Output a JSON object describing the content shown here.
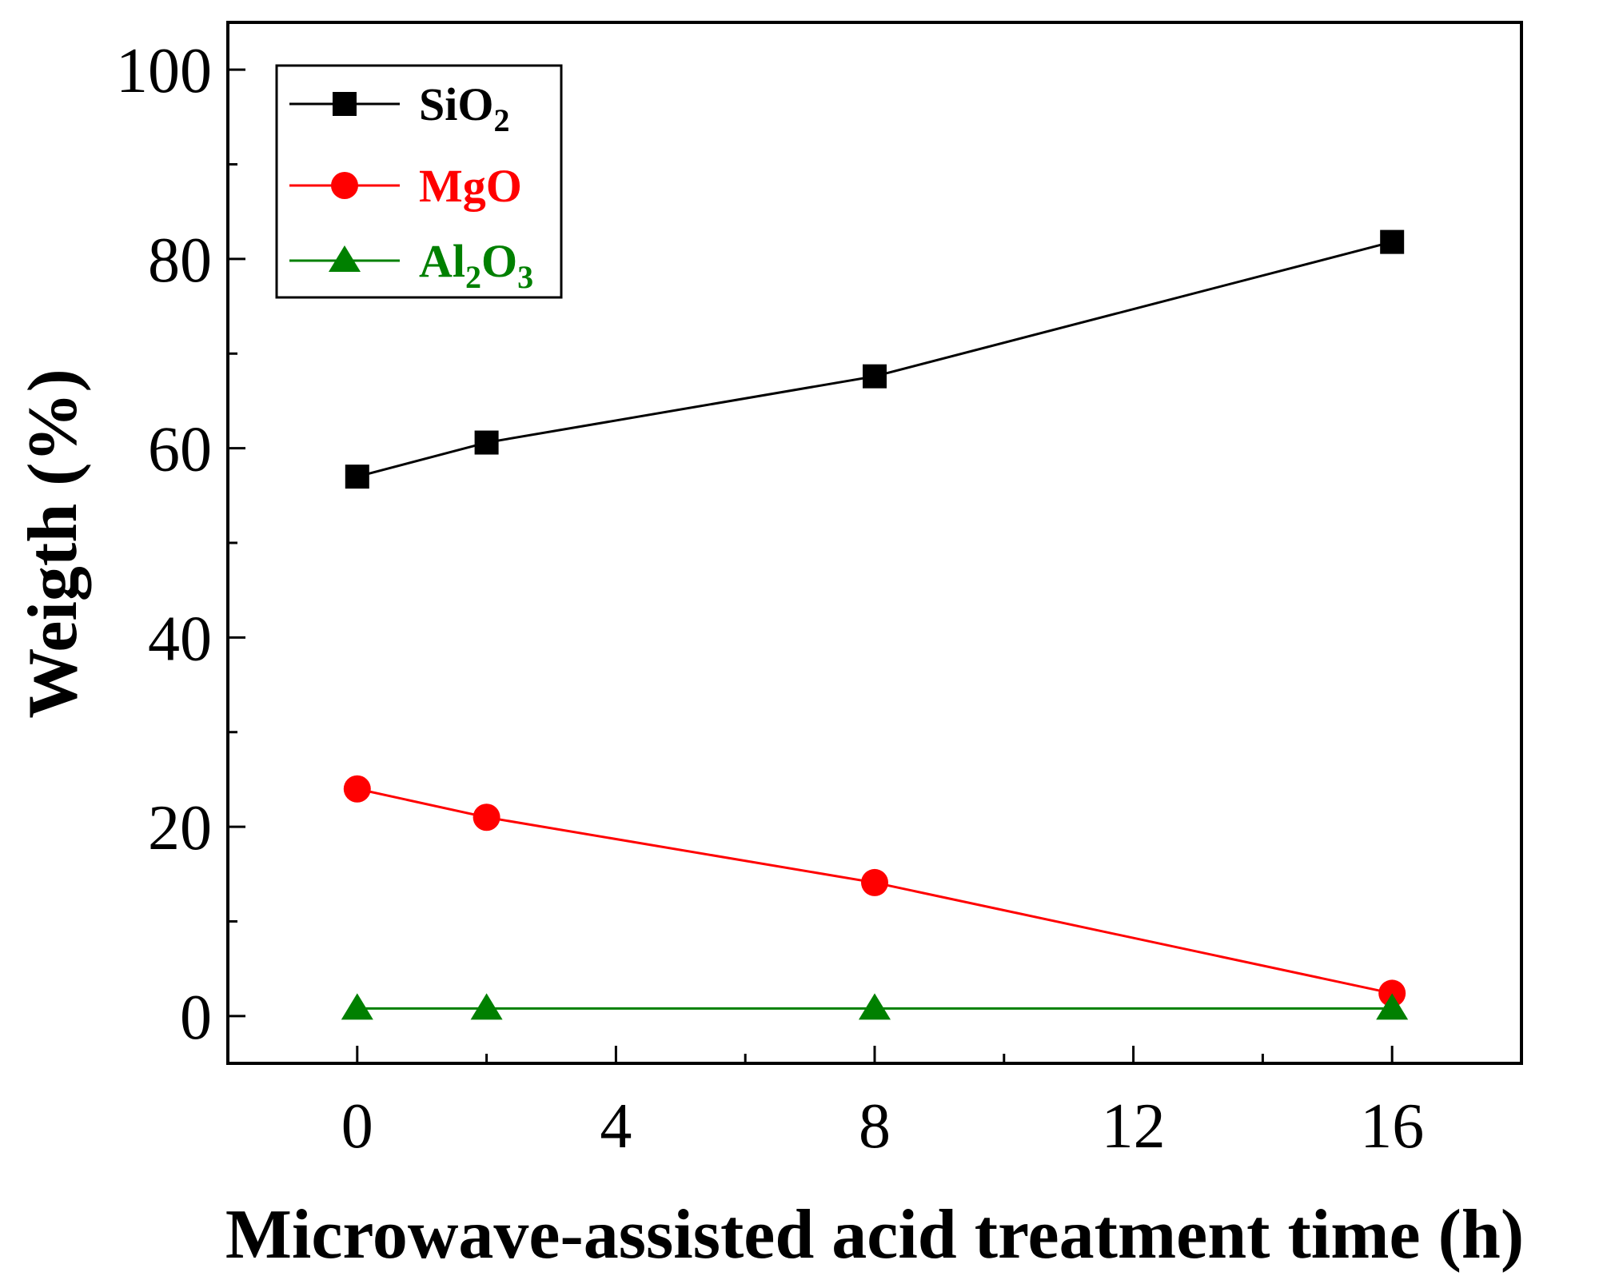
{
  "chart_data": {
    "type": "line",
    "title": "",
    "xlabel": "Microwave-assisted acid treatment time (h)",
    "ylabel": "Weigth (%)",
    "xlim": [
      -2,
      18
    ],
    "ylim": [
      -5,
      105
    ],
    "xticks": [
      0,
      4,
      8,
      12,
      16
    ],
    "xtick_labels": [
      "0",
      "4",
      "8",
      "12",
      "16"
    ],
    "yticks": [
      0,
      20,
      40,
      60,
      80,
      100
    ],
    "ytick_labels": [
      "0",
      "20",
      "40",
      "60",
      "80",
      "100"
    ],
    "grid": false,
    "legend_position": "top-left",
    "x": [
      0,
      2,
      8,
      16
    ],
    "series": [
      {
        "name": "SiO2",
        "legend_parts": [
          {
            "t": "SiO",
            "sub": false
          },
          {
            "t": "2",
            "sub": true
          }
        ],
        "color": "#000000",
        "marker": "square",
        "values": [
          57.0,
          60.6,
          67.6,
          81.8
        ]
      },
      {
        "name": "MgO",
        "legend_parts": [
          {
            "t": "MgO",
            "sub": false
          }
        ],
        "color": "#ff0000",
        "marker": "circle",
        "values": [
          24.0,
          21.0,
          14.1,
          2.4
        ]
      },
      {
        "name": "Al2O3",
        "legend_parts": [
          {
            "t": "Al",
            "sub": false
          },
          {
            "t": "2",
            "sub": true
          },
          {
            "t": "O",
            "sub": false
          },
          {
            "t": "3",
            "sub": true
          }
        ],
        "color": "#008000",
        "marker": "triangle",
        "values": [
          0.8,
          0.8,
          0.8,
          0.8
        ]
      }
    ]
  }
}
